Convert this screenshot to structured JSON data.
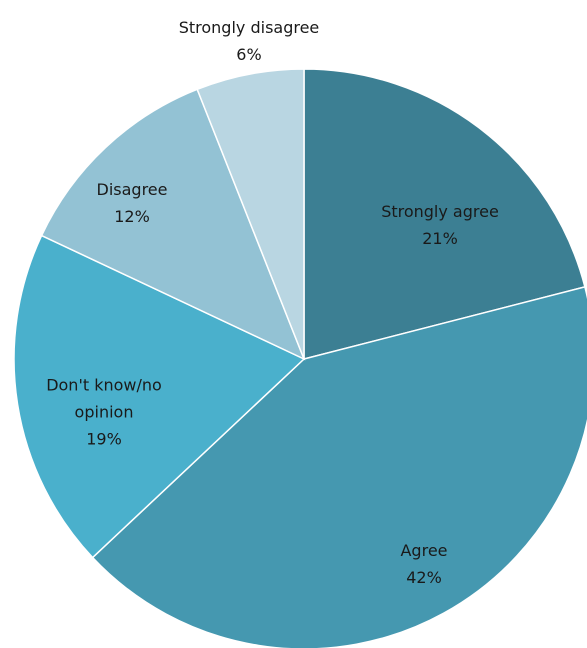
{
  "chart_data": {
    "type": "pie",
    "title": "",
    "slices": [
      {
        "label": "Strongly agree",
        "label_lines": [
          "Strongly agree"
        ],
        "value_text": "21%",
        "value": 21,
        "color": "#3c7f93"
      },
      {
        "label": "Agree",
        "label_lines": [
          "Agree"
        ],
        "value_text": "42%",
        "value": 42,
        "color": "#4598b0"
      },
      {
        "label": "Don't know/no opinion",
        "label_lines": [
          "Don't know/no",
          "opinion"
        ],
        "value_text": "19%",
        "value": 19,
        "color": "#4ab0cc"
      },
      {
        "label": "Disagree",
        "label_lines": [
          "Disagree"
        ],
        "value_text": "12%",
        "value": 12,
        "color": "#93c2d4"
      },
      {
        "label": "Strongly disagree",
        "label_lines": [
          "Strongly disagree"
        ],
        "value_text": "6%",
        "value": 6,
        "color": "#b9d6e2"
      }
    ]
  }
}
